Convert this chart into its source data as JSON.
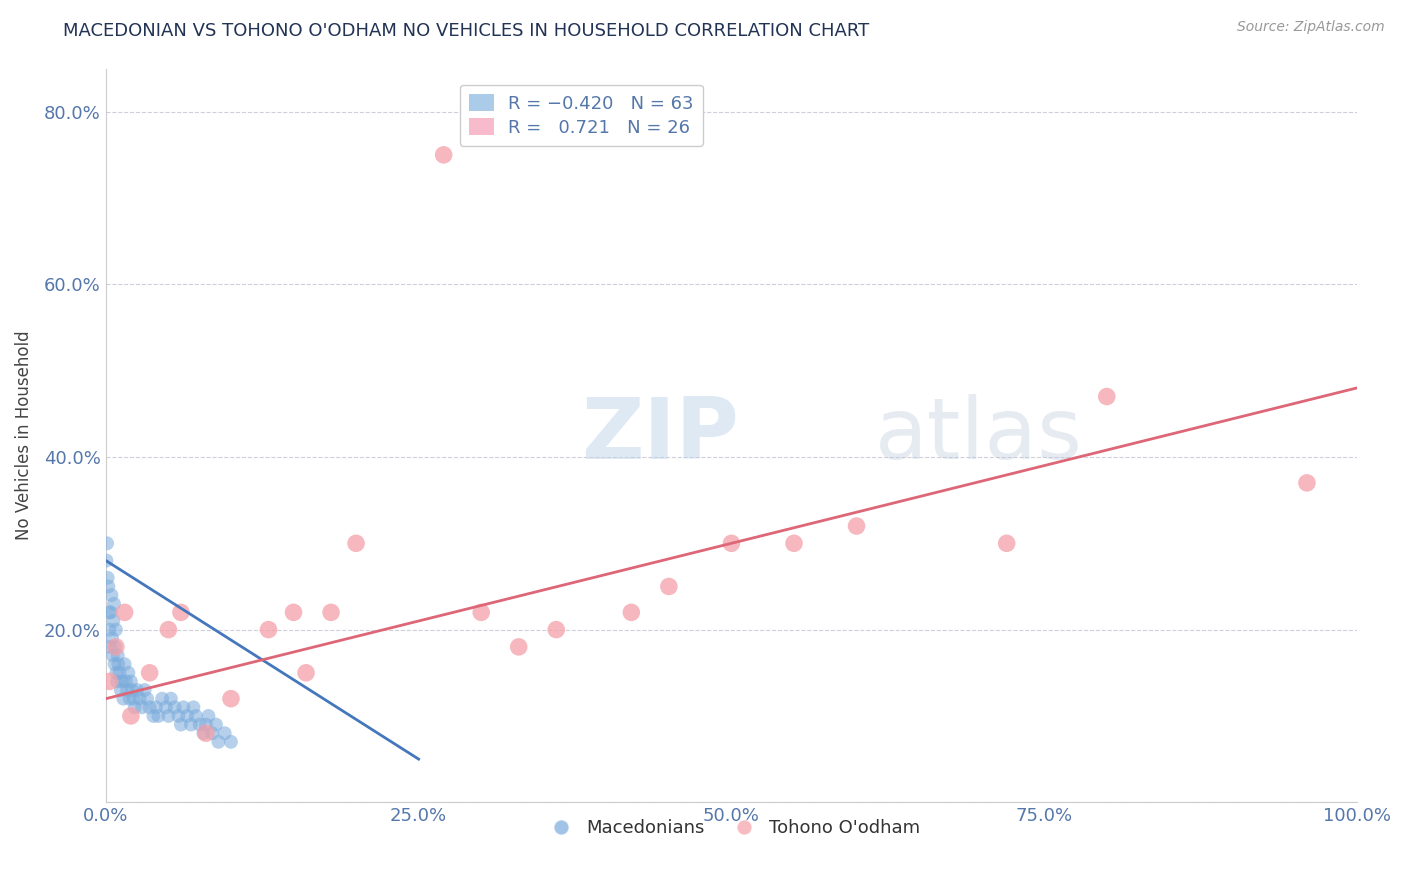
{
  "title": "MACEDONIAN VS TOHONO O'ODHAM NO VEHICLES IN HOUSEHOLD CORRELATION CHART",
  "source_text": "Source: ZipAtlas.com",
  "ylabel": "No Vehicles in Household",
  "xlim": [
    0.0,
    100.0
  ],
  "ylim": [
    0.0,
    85.0
  ],
  "xticks": [
    0.0,
    25.0,
    50.0,
    75.0,
    100.0
  ],
  "yticks": [
    0.0,
    20.0,
    40.0,
    60.0,
    80.0
  ],
  "xtick_labels": [
    "0.0%",
    "25.0%",
    "50.0%",
    "75.0%",
    "100.0%"
  ],
  "ytick_labels": [
    "",
    "20.0%",
    "40.0%",
    "60.0%",
    "80.0%"
  ],
  "macedonian_color": "#7AABDC",
  "tohono_color": "#F4A0A8",
  "macedonian_line_color": "#4477BB",
  "tohono_line_color": "#DD6677",
  "watermark_color": "#C5D8EE",
  "background_color": "#FFFFFF",
  "macedonian_x": [
    0.05,
    0.1,
    0.15,
    0.2,
    0.25,
    0.3,
    0.35,
    0.4,
    0.45,
    0.5,
    0.55,
    0.6,
    0.65,
    0.7,
    0.75,
    0.8,
    0.85,
    0.9,
    0.95,
    1.0,
    1.1,
    1.2,
    1.3,
    1.4,
    1.5,
    1.6,
    1.7,
    1.8,
    1.9,
    2.0,
    2.1,
    2.2,
    2.3,
    2.5,
    2.7,
    2.9,
    3.1,
    3.3,
    3.5,
    3.8,
    4.0,
    4.2,
    4.5,
    4.8,
    5.0,
    5.2,
    5.5,
    5.8,
    6.0,
    6.2,
    6.5,
    6.8,
    7.0,
    7.2,
    7.5,
    7.8,
    8.0,
    8.2,
    8.5,
    8.8,
    9.0,
    9.5,
    10.0
  ],
  "macedonian_y": [
    28.0,
    30.0,
    26.0,
    25.0,
    22.0,
    20.0,
    18.0,
    22.0,
    24.0,
    19.0,
    17.0,
    21.0,
    23.0,
    16.0,
    18.0,
    20.0,
    15.0,
    14.0,
    17.0,
    16.0,
    15.0,
    13.0,
    14.0,
    12.0,
    16.0,
    14.0,
    13.0,
    15.0,
    12.0,
    14.0,
    13.0,
    12.0,
    11.0,
    13.0,
    12.0,
    11.0,
    13.0,
    12.0,
    11.0,
    10.0,
    11.0,
    10.0,
    12.0,
    11.0,
    10.0,
    12.0,
    11.0,
    10.0,
    9.0,
    11.0,
    10.0,
    9.0,
    11.0,
    10.0,
    9.0,
    8.0,
    9.0,
    10.0,
    8.0,
    9.0,
    7.0,
    8.0,
    7.0
  ],
  "tohono_x": [
    0.3,
    0.8,
    1.5,
    2.0,
    3.5,
    5.0,
    6.0,
    8.0,
    10.0,
    13.0,
    15.0,
    16.0,
    18.0,
    20.0,
    27.0,
    30.0,
    33.0,
    36.0,
    42.0,
    45.0,
    50.0,
    55.0,
    60.0,
    72.0,
    80.0,
    96.0
  ],
  "tohono_y": [
    14.0,
    18.0,
    22.0,
    10.0,
    15.0,
    20.0,
    22.0,
    8.0,
    12.0,
    20.0,
    22.0,
    15.0,
    22.0,
    30.0,
    75.0,
    22.0,
    18.0,
    20.0,
    22.0,
    25.0,
    30.0,
    30.0,
    32.0,
    30.0,
    47.0,
    37.0
  ],
  "mac_line_x0": 0.0,
  "mac_line_y0": 28.0,
  "mac_line_x1": 25.0,
  "mac_line_y1": 5.0,
  "toh_line_x0": 0.0,
  "toh_line_y0": 12.0,
  "toh_line_x1": 100.0,
  "toh_line_y1": 48.0
}
